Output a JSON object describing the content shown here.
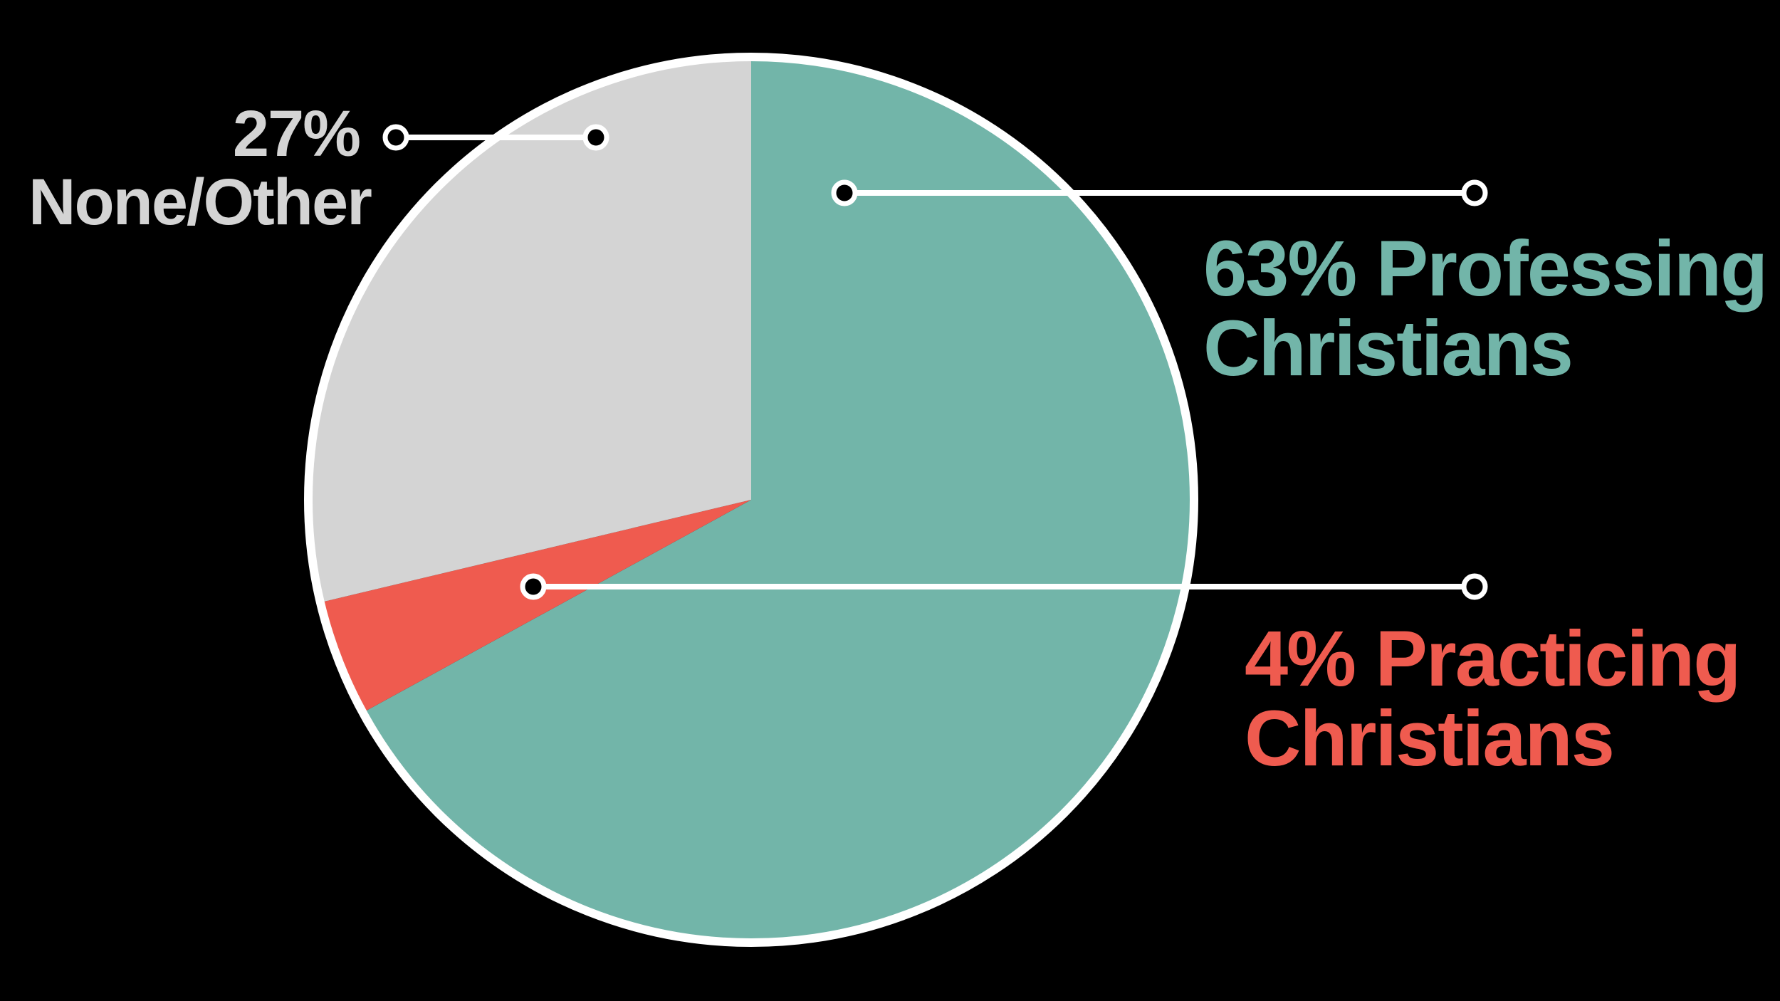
{
  "chart_data": {
    "type": "pie",
    "categories": [
      "Professing Christians",
      "Practicing Christians",
      "None/Other"
    ],
    "values": [
      63,
      4,
      27
    ],
    "value_labels": [
      "63%",
      "4%",
      "27%"
    ],
    "colors": [
      "#72b5a9",
      "#ef5b4f",
      "#d4d4d4"
    ]
  }
}
